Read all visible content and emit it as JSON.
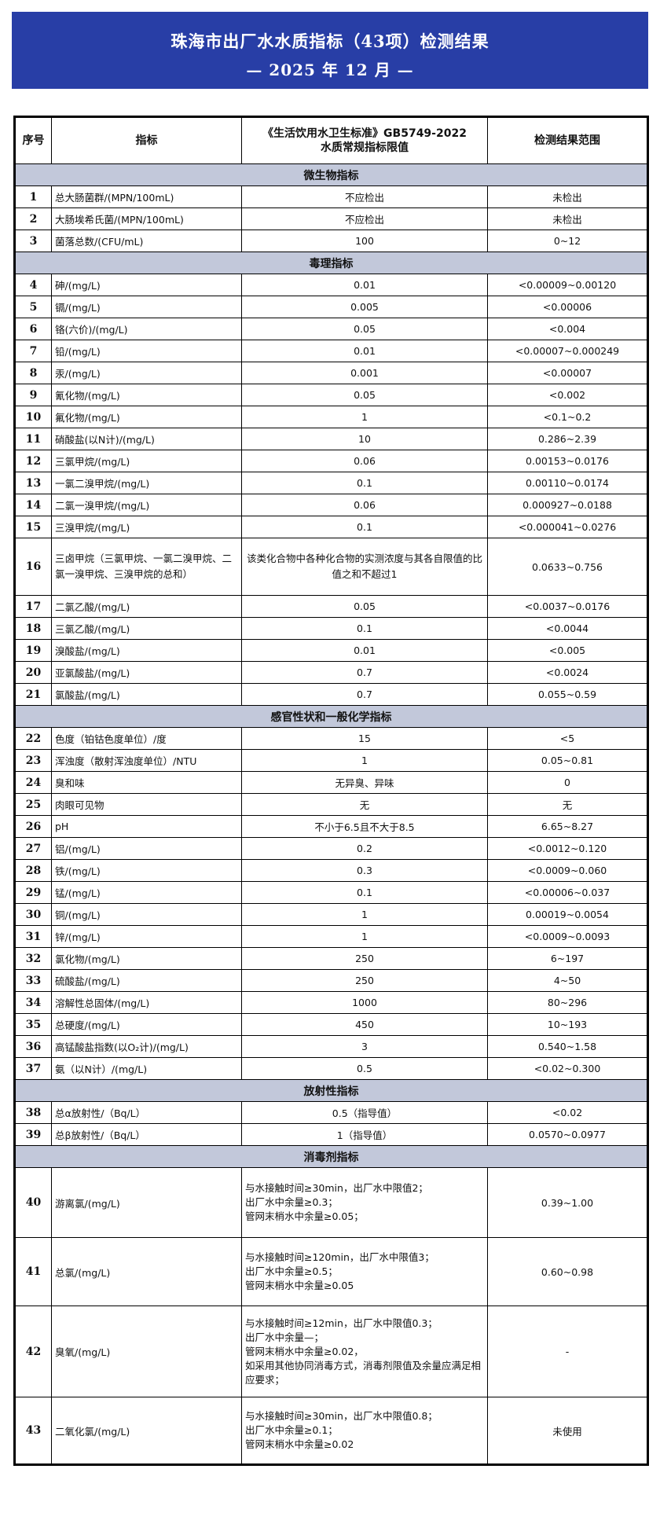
{
  "header": {
    "title": "珠海市出厂水水质指标（43项）检测结果",
    "subtitle": "— 2025 年 12 月 —",
    "bg_color": "#283ea6"
  },
  "columns": [
    "序号",
    "指标",
    "《生活饮用水卫生标准》GB5749-2022\n水质常规指标限值",
    "检测结果范围"
  ],
  "section_color": "#c2c8da",
  "sections": [
    {
      "title": "微生物指标",
      "rows": [
        {
          "no": "1",
          "name": "总大肠菌群/(MPN/100mL)",
          "limit": "不应检出",
          "result": "未检出"
        },
        {
          "no": "2",
          "name": "大肠埃希氏菌/(MPN/100mL)",
          "limit": "不应检出",
          "result": "未检出"
        },
        {
          "no": "3",
          "name": "菌落总数/(CFU/mL)",
          "limit": "100",
          "result": "0~12"
        }
      ]
    },
    {
      "title": "毒理指标",
      "rows": [
        {
          "no": "4",
          "name": "砷/(mg/L)",
          "limit": "0.01",
          "result": "<0.00009~0.00120"
        },
        {
          "no": "5",
          "name": "镉/(mg/L)",
          "limit": "0.005",
          "result": "<0.00006"
        },
        {
          "no": "6",
          "name": "铬(六价)/(mg/L)",
          "limit": "0.05",
          "result": "<0.004"
        },
        {
          "no": "7",
          "name": "铅/(mg/L)",
          "limit": "0.01",
          "result": "<0.00007~0.000249"
        },
        {
          "no": "8",
          "name": "汞/(mg/L)",
          "limit": "0.001",
          "result": "<0.00007"
        },
        {
          "no": "9",
          "name": "氰化物/(mg/L)",
          "limit": "0.05",
          "result": "<0.002"
        },
        {
          "no": "10",
          "name": "氟化物/(mg/L)",
          "limit": "1",
          "result": "<0.1~0.2"
        },
        {
          "no": "11",
          "name": "硝酸盐(以N计)/(mg/L)",
          "limit": "10",
          "result": "0.286~2.39"
        },
        {
          "no": "12",
          "name": "三氯甲烷/(mg/L)",
          "limit": "0.06",
          "result": "0.00153~0.0176"
        },
        {
          "no": "13",
          "name": "一氯二溴甲烷/(mg/L)",
          "limit": "0.1",
          "result": "0.00110~0.0174"
        },
        {
          "no": "14",
          "name": "二氯一溴甲烷/(mg/L)",
          "limit": "0.06",
          "result": "0.000927~0.0188"
        },
        {
          "no": "15",
          "name": "三溴甲烷/(mg/L)",
          "limit": "0.1",
          "result": "<0.000041~0.0276"
        },
        {
          "no": "16",
          "name": "三卤甲烷（三氯甲烷、一氯二溴甲烷、二氯一溴甲烷、三溴甲烷的总和）",
          "limit": "该类化合物中各种化合物的实测浓度与其各自限值的比值之和不超过1",
          "result": "0.0633~0.756",
          "h": 72
        },
        {
          "no": "17",
          "name": "二氯乙酸/(mg/L)",
          "limit": "0.05",
          "result": "<0.0037~0.0176"
        },
        {
          "no": "18",
          "name": "三氯乙酸/(mg/L)",
          "limit": "0.1",
          "result": "<0.0044"
        },
        {
          "no": "19",
          "name": "溴酸盐/(mg/L)",
          "limit": "0.01",
          "result": "<0.005"
        },
        {
          "no": "20",
          "name": "亚氯酸盐/(mg/L)",
          "limit": "0.7",
          "result": "<0.0024"
        },
        {
          "no": "21",
          "name": "氯酸盐/(mg/L)",
          "limit": "0.7",
          "result": "0.055~0.59"
        }
      ]
    },
    {
      "title": "感官性状和一般化学指标",
      "rows": [
        {
          "no": "22",
          "name": "色度（铂钴色度单位）/度",
          "limit": "15",
          "result": "<5"
        },
        {
          "no": "23",
          "name": "浑浊度（散射浑浊度单位）/NTU",
          "limit": "1",
          "result": "0.05~0.81"
        },
        {
          "no": "24",
          "name": "臭和味",
          "limit": "无异臭、异味",
          "result": "0"
        },
        {
          "no": "25",
          "name": "肉眼可见物",
          "limit": "无",
          "result": "无"
        },
        {
          "no": "26",
          "name": "pH",
          "limit": "不小于6.5且不大于8.5",
          "result": "6.65~8.27"
        },
        {
          "no": "27",
          "name": "铝/(mg/L)",
          "limit": "0.2",
          "result": "<0.0012~0.120"
        },
        {
          "no": "28",
          "name": "铁/(mg/L)",
          "limit": "0.3",
          "result": "<0.0009~0.060"
        },
        {
          "no": "29",
          "name": "锰/(mg/L)",
          "limit": "0.1",
          "result": "<0.00006~0.037"
        },
        {
          "no": "30",
          "name": "铜/(mg/L)",
          "limit": "1",
          "result": "0.00019~0.0054"
        },
        {
          "no": "31",
          "name": "锌/(mg/L)",
          "limit": "1",
          "result": "<0.0009~0.0093"
        },
        {
          "no": "32",
          "name": "氯化物/(mg/L)",
          "limit": "250",
          "result": "6~197"
        },
        {
          "no": "33",
          "name": "硫酸盐/(mg/L)",
          "limit": "250",
          "result": "4~50"
        },
        {
          "no": "34",
          "name": "溶解性总固体/(mg/L)",
          "limit": "1000",
          "result": "80~296"
        },
        {
          "no": "35",
          "name": "总硬度/(mg/L)",
          "limit": "450",
          "result": "10~193"
        },
        {
          "no": "36",
          "name": "高锰酸盐指数(以O₂计)/(mg/L)",
          "limit": "3",
          "result": "0.540~1.58"
        },
        {
          "no": "37",
          "name": "氨（以N计）/(mg/L)",
          "limit": "0.5",
          "result": "<0.02~0.300"
        }
      ]
    },
    {
      "title": "放射性指标",
      "rows": [
        {
          "no": "38",
          "name": "总α放射性/（Bq/L）",
          "limit": "0.5（指导值）",
          "result": "<0.02"
        },
        {
          "no": "39",
          "name": "总β放射性/（Bq/L）",
          "limit": "1（指导值）",
          "result": "0.0570~0.0977"
        }
      ]
    },
    {
      "title": "消毒剂指标",
      "rows": [
        {
          "no": "40",
          "name": "游离氯/(mg/L)",
          "limit": "与水接触时间≥30min，出厂水中限值2；\n出厂水中余量≥0.3；\n管网末梢水中余量≥0.05；",
          "result": "0.39~1.00",
          "h": 88,
          "multi": true
        },
        {
          "no": "41",
          "name": "总氯/(mg/L)",
          "limit": "与水接触时间≥120min，出厂水中限值3；\n出厂水中余量≥0.5；\n管网末梢水中余量≥0.05",
          "result": "0.60~0.98",
          "h": 86,
          "multi": true
        },
        {
          "no": "42",
          "name": "臭氧/(mg/L)",
          "limit": "与水接触时间≥12min，出厂水中限值0.3；\n出厂水中余量—；\n管网末梢水中余量≥0.02，\n如采用其他协同消毒方式，消毒剂限值及余量应满足相应要求；",
          "result": "-",
          "h": 115,
          "multi": true
        },
        {
          "no": "43",
          "name": "二氧化氯/(mg/L)",
          "limit": "与水接触时间≥30min，出厂水中限值0.8；\n出厂水中余量≥0.1；\n管网末梢水中余量≥0.02",
          "result": "未使用",
          "h": 84,
          "multi": true
        }
      ]
    }
  ]
}
